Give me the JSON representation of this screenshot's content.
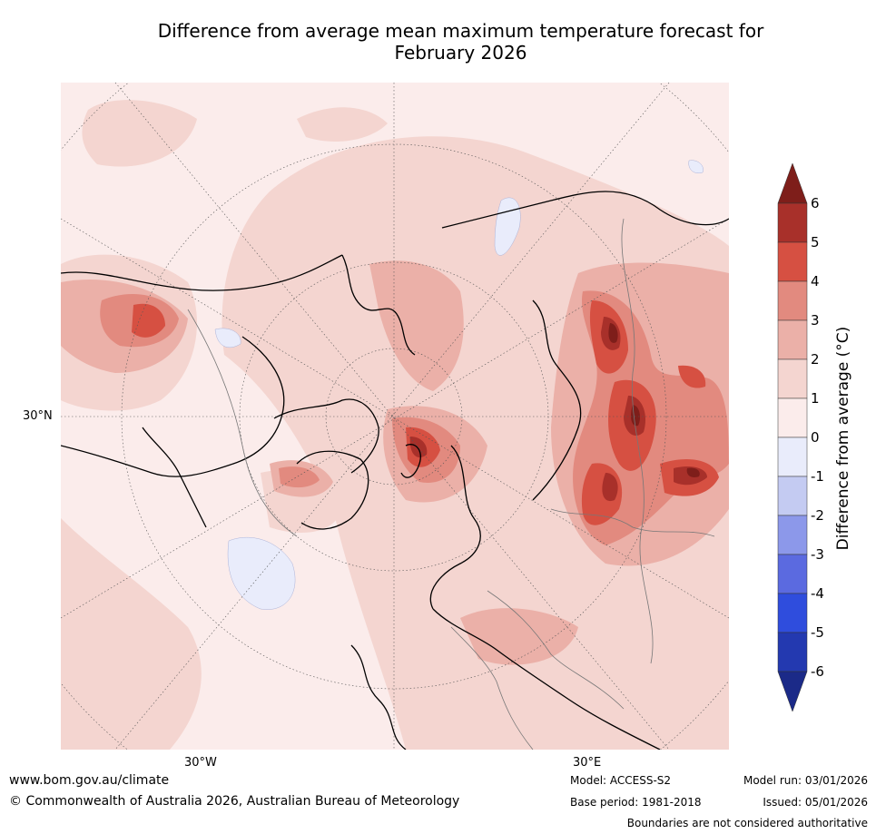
{
  "title": {
    "line1": "Difference from average mean maximum temperature forecast for",
    "line2": "February 2026"
  },
  "map": {
    "lat_label": "30°N",
    "lon_labels": [
      "30°W",
      "30°E"
    ]
  },
  "colorbar": {
    "label": "Difference from average (°C)",
    "ticks": [
      "6",
      "5",
      "4",
      "3",
      "2",
      "1",
      "0",
      "-1",
      "-2",
      "-3",
      "-4",
      "-5",
      "-6"
    ],
    "colors": [
      "#7e1e1a",
      "#a8302a",
      "#d65042",
      "#e28a7f",
      "#ebb0a8",
      "#f4d5d0",
      "#fbeceb",
      "#e9ecfb",
      "#c4cbf2",
      "#8c98ea",
      "#5b6ae0",
      "#2f4ddd",
      "#2339b0",
      "#1b2a88"
    ]
  },
  "footer": {
    "website": "www.bom.gov.au/climate",
    "copyright": "© Commonwealth of Australia 2026, Australian Bureau of Meteorology",
    "model": "Model: ACCESS-S2",
    "base_period": "Base period: 1981-2018",
    "model_run": "Model run: 03/01/2026",
    "issued": "Issued: 05/01/2026",
    "disclaimer": "Boundaries are not considered authoritative"
  }
}
